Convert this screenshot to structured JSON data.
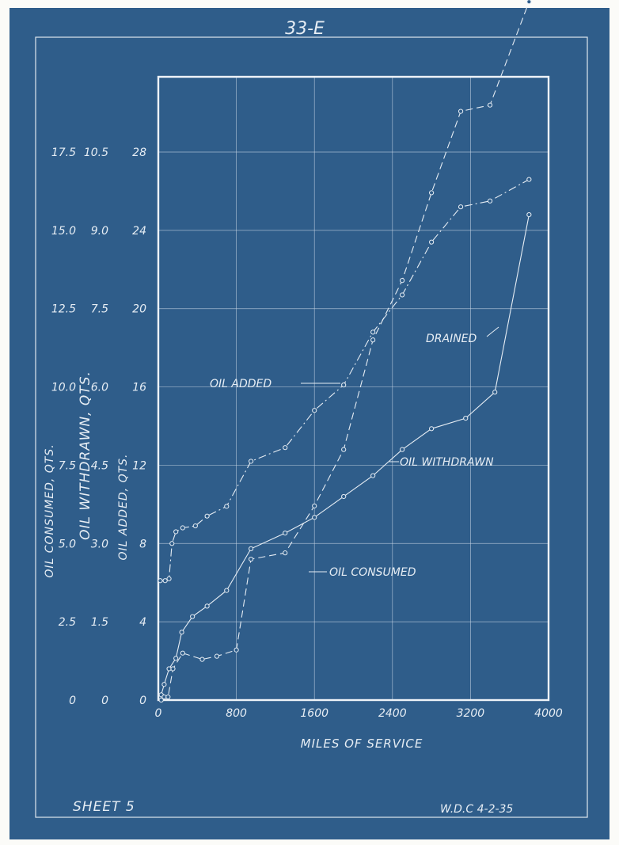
{
  "sheet": {
    "number": "33-E",
    "sheet_label": "SHEET 5",
    "signature": "W.D.C 4-2-35"
  },
  "colors": {
    "paper": "#2f5d8a",
    "ink": "#e6edf4",
    "border": "#fbfbf8"
  },
  "chart_data": {
    "type": "line",
    "xlabel": "MILES OF SERVICE",
    "xlim": [
      0,
      4000
    ],
    "x_ticks": [
      "0",
      "800",
      "1600",
      "2400",
      "3200",
      "4000"
    ],
    "x_tick_values": [
      0,
      800,
      1600,
      2400,
      3200,
      4000
    ],
    "y_axes": [
      {
        "label": "OIL CONSUMED, QTS.",
        "ticks": [
          "0",
          "2.5",
          "5.0",
          "7.5",
          "10.0",
          "12.5",
          "15.0",
          "17.5"
        ],
        "ylim": [
          0,
          17.5
        ]
      },
      {
        "label": "OIL WITHDRAWN, QTS.",
        "ticks": [
          "0",
          "1.5",
          "3.0",
          "4.5",
          "6.0",
          "7.5",
          "9.0",
          "10.5"
        ],
        "ylim": [
          0,
          10.5
        ]
      },
      {
        "label": "OIL ADDED, QTS.",
        "ticks": [
          "0",
          "4",
          "8",
          "12",
          "16",
          "20",
          "24",
          "28"
        ],
        "ylim": [
          0,
          28
        ]
      }
    ],
    "grid": true,
    "series": [
      {
        "name": "OIL ADDED",
        "style": "dash-dot",
        "axis": "OIL ADDED, QTS.",
        "points": [
          [
            20,
            6.1
          ],
          [
            70,
            6.1
          ],
          [
            110,
            6.2
          ],
          [
            140,
            8
          ],
          [
            180,
            8.6
          ],
          [
            250,
            8.8
          ],
          [
            380,
            8.9
          ],
          [
            500,
            9.4
          ],
          [
            700,
            9.9
          ],
          [
            950,
            12.2
          ],
          [
            1300,
            12.9
          ],
          [
            1600,
            14.8
          ],
          [
            1900,
            16.1
          ],
          [
            2200,
            18.8
          ],
          [
            2500,
            20.7
          ],
          [
            2800,
            23.4
          ],
          [
            3100,
            25.2
          ],
          [
            3400,
            25.5
          ],
          [
            3800,
            26.6
          ]
        ]
      },
      {
        "name": "OIL WITHDRAWN",
        "style": "solid",
        "axis": "OIL WITHDRAWN, QTS.",
        "points": [
          [
            30,
            0.1
          ],
          [
            60,
            0.3
          ],
          [
            110,
            0.6
          ],
          [
            180,
            0.8
          ],
          [
            240,
            1.3
          ],
          [
            350,
            1.6
          ],
          [
            500,
            1.8
          ],
          [
            700,
            2.1
          ],
          [
            950,
            2.9
          ],
          [
            1300,
            3.2
          ],
          [
            1600,
            3.5
          ],
          [
            1900,
            3.9
          ],
          [
            2200,
            4.3
          ],
          [
            2500,
            4.8
          ],
          [
            2800,
            5.2
          ],
          [
            3150,
            5.4
          ],
          [
            3450,
            5.9
          ],
          [
            3800,
            9.3
          ]
        ]
      },
      {
        "name": "OIL CONSUMED",
        "style": "dashed",
        "axis": "OIL CONSUMED, QTS.",
        "points": [
          [
            30,
            0
          ],
          [
            60,
            0.1
          ],
          [
            100,
            0.1
          ],
          [
            150,
            1
          ],
          [
            250,
            1.5
          ],
          [
            450,
            1.3
          ],
          [
            600,
            1.4
          ],
          [
            800,
            1.6
          ],
          [
            950,
            4.5
          ],
          [
            1300,
            4.7
          ],
          [
            1600,
            6.2
          ],
          [
            1900,
            8
          ],
          [
            2200,
            11.5
          ],
          [
            2500,
            13.4
          ],
          [
            2800,
            16.2
          ],
          [
            3100,
            18.8
          ],
          [
            3400,
            19
          ],
          [
            3800,
            22.3
          ]
        ]
      }
    ],
    "annotations": [
      "OIL ADDED",
      "OIL WITHDRAWN",
      "OIL CONSUMED",
      "DRAINED"
    ]
  }
}
